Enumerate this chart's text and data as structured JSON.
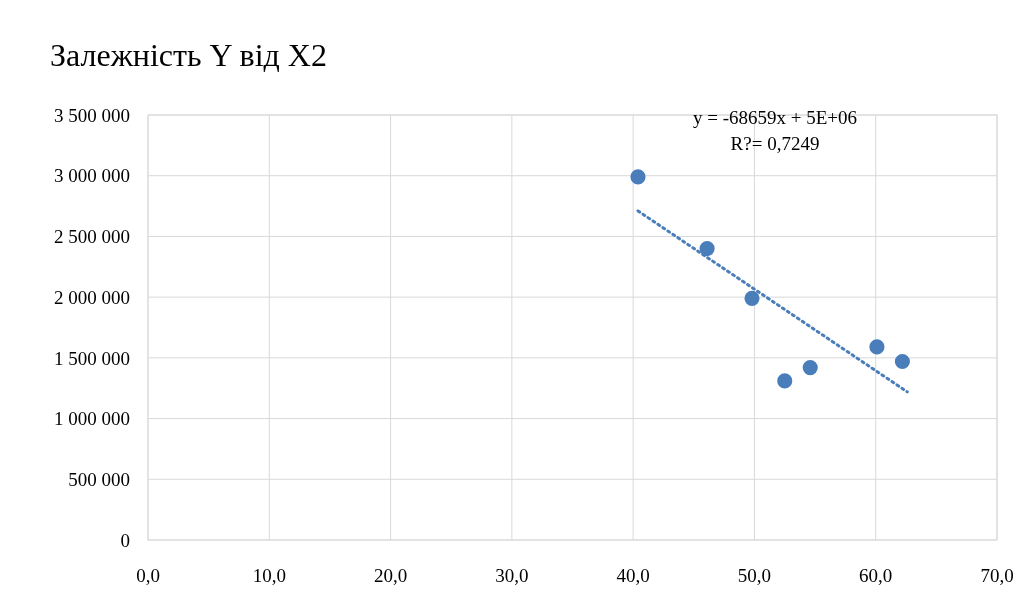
{
  "chart_data": {
    "type": "scatter",
    "title": "Залежність Y від X2",
    "series": [
      {
        "color": "#4a7ebb",
        "marker": "circle",
        "x": [
          40.4,
          46.1,
          49.8,
          52.5,
          54.6,
          60.1,
          62.2
        ],
        "values": [
          2990000,
          2400000,
          1990000,
          1310000,
          1420000,
          1590000,
          1470000
        ]
      },
      {
        "type": "line",
        "color": "#4a7ebb",
        "marker": "none",
        "line_style": "dotted",
        "x": [
          40.4,
          62.6
        ],
        "values": [
          2710000,
          1220000
        ]
      }
    ],
    "xlim": [
      0,
      70
    ],
    "xticks": [
      {
        "value": 0,
        "label": "0,0"
      },
      {
        "value": 10,
        "label": "10,0"
      },
      {
        "value": 20,
        "label": "20,0"
      },
      {
        "value": 30,
        "label": "30,0"
      },
      {
        "value": 40,
        "label": "40,0"
      },
      {
        "value": 50,
        "label": "50,0"
      },
      {
        "value": 60,
        "label": "60,0"
      },
      {
        "value": 70,
        "label": "70,0"
      }
    ],
    "ylim": [
      0,
      3500000
    ],
    "yticks": [
      0,
      {
        "value": 500000,
        "label": "500 000"
      },
      {
        "value": 1000000,
        "label": "1 000 000"
      },
      {
        "value": 1500000,
        "label": "1 500 000"
      },
      {
        "value": 2000000,
        "label": "2 000 000"
      },
      {
        "value": 2500000,
        "label": "2 500 000"
      },
      {
        "value": 3000000,
        "label": "3 000 000"
      },
      {
        "value": 3500000,
        "label": "3 500 000"
      }
    ],
    "grid": true,
    "annotations": [
      "y = -68659x + 5E+06",
      "R?= 0,7249"
    ]
  }
}
